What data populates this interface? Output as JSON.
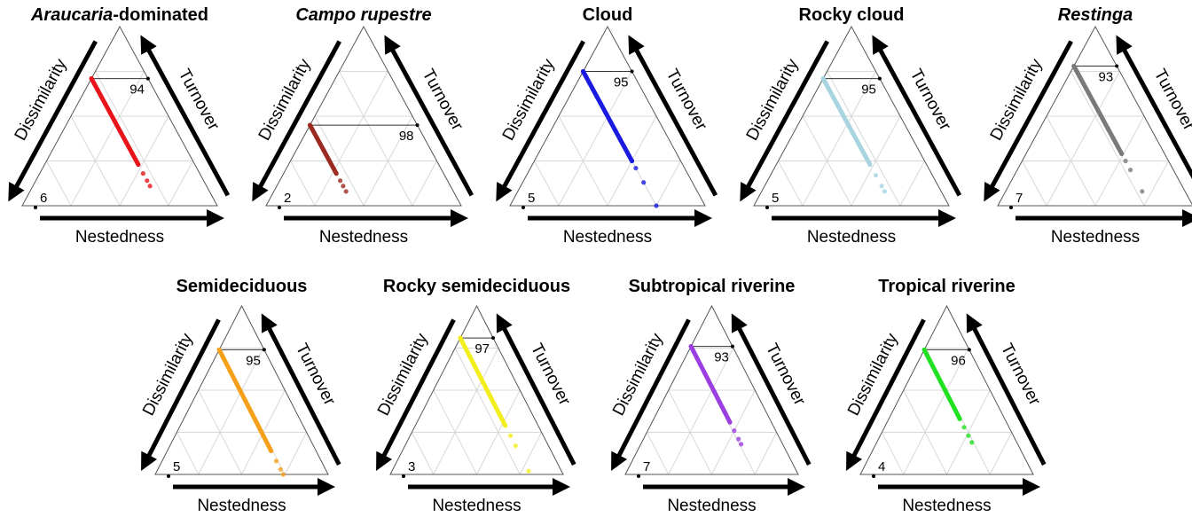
{
  "chart_data": [
    {
      "type": "ternary",
      "title": [
        {
          "text": "Araucaria",
          "italic": true
        },
        {
          "text": "-dominated"
        }
      ],
      "color": "#e8141a",
      "grid": true,
      "grid_divisions": 4,
      "axis_labels": {
        "left": "Dissimilarity",
        "right": "Turnover",
        "bottom": "Nestedness"
      },
      "left": 0.29,
      "right": [
        0,
        0.03,
        0.06,
        0.1,
        0.14,
        0.19,
        0.24,
        0.3,
        0.36,
        0.42,
        0.48,
        0.53,
        0.57,
        0.6
      ],
      "top_label": 94,
      "bottom_label": 6
    },
    {
      "type": "ternary",
      "title": [
        {
          "text": "Campo rupestre",
          "italic": true
        }
      ],
      "color": "#9b2a22",
      "grid": true,
      "grid_divisions": 4,
      "axis_labels": {
        "left": "Dissimilarity",
        "right": "Turnover",
        "bottom": "Nestedness"
      },
      "left": 0.55,
      "right": [
        0,
        0.02,
        0.04,
        0.07,
        0.1,
        0.14,
        0.18,
        0.22,
        0.27,
        0.31,
        0.34,
        0.37
      ],
      "top_label": 98,
      "bottom_label": 2
    },
    {
      "type": "ternary",
      "title": [
        {
          "text": "Cloud"
        }
      ],
      "color": "#1a1ae0",
      "grid": true,
      "grid_divisions": 4,
      "axis_labels": {
        "left": "Dissimilarity",
        "right": "Turnover",
        "bottom": "Nestedness"
      },
      "left": 0.25,
      "right": [
        0,
        0.03,
        0.06,
        0.1,
        0.14,
        0.18,
        0.23,
        0.28,
        0.33,
        0.38,
        0.43,
        0.47,
        0.5,
        0.54,
        0.62,
        0.75
      ],
      "top_label": 95,
      "bottom_label": 5
    },
    {
      "type": "ternary",
      "title": [
        {
          "text": "Rocky cloud"
        }
      ],
      "color": "#a8d4e0",
      "grid": true,
      "grid_divisions": 4,
      "axis_labels": {
        "left": "Dissimilarity",
        "right": "Turnover",
        "bottom": "Nestedness"
      },
      "left": 0.29,
      "right": [
        0,
        0.03,
        0.06,
        0.1,
        0.14,
        0.19,
        0.24,
        0.3,
        0.36,
        0.42,
        0.48,
        0.54,
        0.6,
        0.63
      ],
      "top_label": 95,
      "bottom_label": 5
    },
    {
      "type": "ternary",
      "title": [
        {
          "text": "Restinga",
          "italic": true
        }
      ],
      "color": "#7a7a7a",
      "grid": true,
      "grid_divisions": 4,
      "axis_labels": {
        "left": "Dissimilarity",
        "right": "Turnover",
        "bottom": "Nestedness"
      },
      "left": 0.22,
      "right": [
        0,
        0.03,
        0.06,
        0.1,
        0.15,
        0.2,
        0.25,
        0.3,
        0.35,
        0.4,
        0.45,
        0.49,
        0.53,
        0.58,
        0.7
      ],
      "top_label": 93,
      "bottom_label": 7
    },
    {
      "type": "ternary",
      "title": [
        {
          "text": "Semideciduous"
        }
      ],
      "color": "#f5a01a",
      "grid": true,
      "grid_divisions": 4,
      "axis_labels": {
        "left": "Dissimilarity",
        "right": "Turnover",
        "bottom": "Nestedness"
      },
      "left": 0.26,
      "right": [
        0,
        0.04,
        0.08,
        0.13,
        0.18,
        0.24,
        0.3,
        0.36,
        0.42,
        0.48,
        0.54,
        0.6,
        0.66,
        0.71,
        0.74
      ],
      "top_label": 95,
      "bottom_label": 5
    },
    {
      "type": "ternary",
      "title": [
        {
          "text": "Rocky semideciduous"
        }
      ],
      "color": "#f2ee1e",
      "grid": true,
      "grid_divisions": 4,
      "axis_labels": {
        "left": "Dissimilarity",
        "right": "Turnover",
        "bottom": "Nestedness"
      },
      "left": 0.19,
      "right": [
        0,
        0.03,
        0.07,
        0.11,
        0.16,
        0.21,
        0.27,
        0.33,
        0.39,
        0.45,
        0.52,
        0.58,
        0.64,
        0.79
      ],
      "top_label": 97,
      "bottom_label": 3
    },
    {
      "type": "ternary",
      "title": [
        {
          "text": "Subtropical riverine"
        }
      ],
      "color": "#9b3fe0",
      "grid": true,
      "grid_divisions": 4,
      "axis_labels": {
        "left": "Dissimilarity",
        "right": "Turnover",
        "bottom": "Nestedness"
      },
      "left": 0.24,
      "right": [
        0,
        0.03,
        0.07,
        0.11,
        0.16,
        0.21,
        0.27,
        0.33,
        0.39,
        0.45,
        0.5,
        0.55,
        0.58
      ],
      "top_label": 93,
      "bottom_label": 7
    },
    {
      "type": "ternary",
      "title": [
        {
          "text": "Tropical riverine"
        }
      ],
      "color": "#22e022",
      "grid": true,
      "grid_divisions": 4,
      "axis_labels": {
        "left": "Dissimilarity",
        "right": "Turnover",
        "bottom": "Nestedness"
      },
      "left": 0.26,
      "right": [
        0,
        0.03,
        0.06,
        0.1,
        0.14,
        0.19,
        0.24,
        0.29,
        0.35,
        0.41,
        0.46,
        0.51,
        0.55
      ],
      "top_label": 96,
      "bottom_label": 4
    }
  ]
}
